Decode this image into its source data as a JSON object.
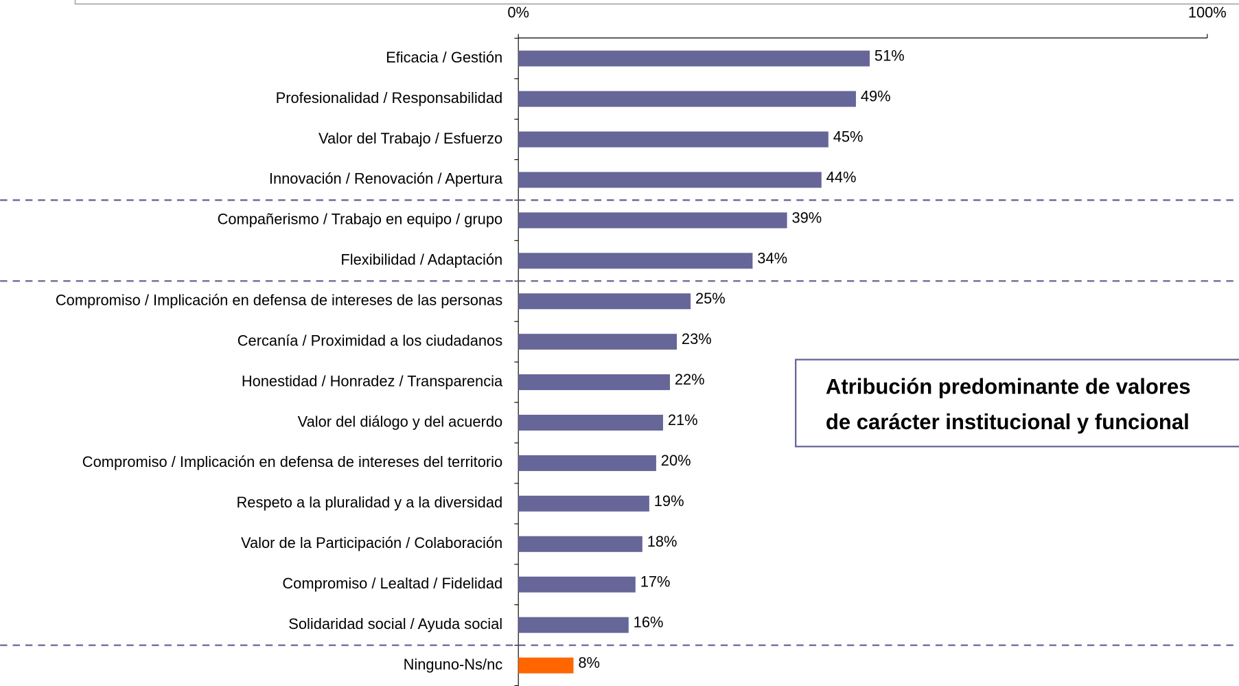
{
  "chart_data": {
    "type": "hbar",
    "categories": [
      "Eficacia / Gestión",
      "Profesionalidad / Responsabilidad",
      "Valor del Trabajo / Esfuerzo",
      "Innovación / Renovación / Apertura",
      "Compañerismo / Trabajo en equipo / grupo",
      "Flexibilidad / Adaptación",
      "Compromiso / Implicación en defensa de intereses de las personas",
      "Cercanía / Proximidad a los ciudadanos",
      "Honestidad / Honradez / Transparencia",
      "Valor del diálogo y del acuerdo",
      "Compromiso / Implicación en defensa de intereses del territorio",
      "Respeto a la pluralidad y a la diversidad",
      "Valor de la Participación / Colaboración",
      "Compromiso / Lealtad / Fidelidad",
      "Solidaridad social / Ayuda social",
      "Ninguno-Ns/nc"
    ],
    "values": [
      51,
      49,
      45,
      44,
      39,
      34,
      25,
      23,
      22,
      21,
      20,
      19,
      18,
      17,
      16,
      8
    ],
    "value_labels": [
      "51%",
      "49%",
      "45%",
      "44%",
      "39%",
      "34%",
      "25%",
      "23%",
      "22%",
      "21%",
      "20%",
      "19%",
      "18%",
      "17%",
      "16%",
      "8%"
    ],
    "colors": [
      "#666699",
      "#666699",
      "#666699",
      "#666699",
      "#666699",
      "#666699",
      "#666699",
      "#666699",
      "#666699",
      "#666699",
      "#666699",
      "#666699",
      "#666699",
      "#666699",
      "#666699",
      "#ff6600"
    ],
    "xlim": [
      0,
      100
    ],
    "xticks": [
      {
        "value": 0,
        "label": "0%"
      },
      {
        "value": 100,
        "label": "100%"
      }
    ],
    "annotation": [
      "Atribución predominante de valores",
      "de carácter institucional y funcional"
    ]
  }
}
